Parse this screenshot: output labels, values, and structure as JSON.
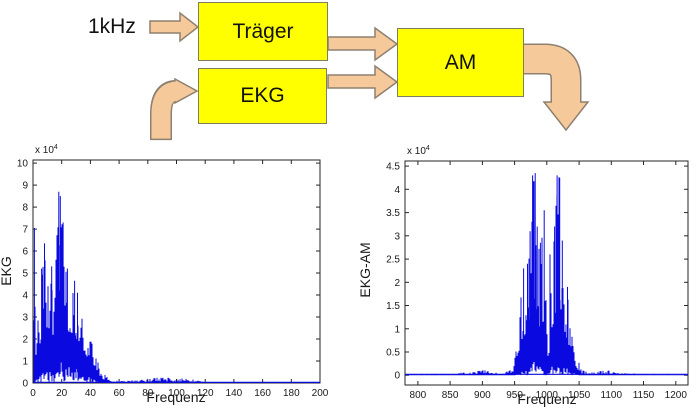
{
  "diagram": {
    "input_label": "1kHz",
    "blocks": {
      "traeger": "Träger",
      "ekg": "EKG",
      "am": "AM"
    },
    "colors": {
      "box_fill": "#ffff00",
      "box_border": "#7f7f5f",
      "arrow_fill": "#f6c99b",
      "arrow_border": "#8d8070"
    }
  },
  "chart_data": [
    {
      "type": "line",
      "title": "",
      "xlabel": "Frequenz",
      "ylabel": "EKG",
      "y_multiplier": {
        "base": "x 10",
        "exp": "4"
      },
      "line_color": "#0a0ae0",
      "xlim": [
        0,
        200
      ],
      "ylim": [
        0,
        10.14
      ],
      "xticks": [
        0,
        20,
        40,
        60,
        80,
        100,
        120,
        140,
        160,
        180,
        200
      ],
      "yticks": [
        0,
        1,
        2,
        3,
        4,
        5,
        6,
        7,
        8,
        9,
        10
      ],
      "grid": false,
      "legend": null,
      "baseline": 0.03,
      "description": "Noisy magnitude spectrum of EKG signal; energy concentrated 0-50 Hz, small noise ridge 60-115 Hz, peak about 8.7e4 near 19 Hz.",
      "envelope_max": [
        [
          0,
          0.5
        ],
        [
          1,
          7.1
        ],
        [
          2,
          3.2
        ],
        [
          4,
          4.2
        ],
        [
          6,
          5.2
        ],
        [
          8,
          6.35
        ],
        [
          10,
          5.3
        ],
        [
          12,
          4.6
        ],
        [
          14,
          4.4
        ],
        [
          16,
          5.6
        ],
        [
          18,
          8.7
        ],
        [
          20,
          8.4
        ],
        [
          21,
          7.3
        ],
        [
          23,
          5.2
        ],
        [
          25,
          4.3
        ],
        [
          27,
          4.7
        ],
        [
          29,
          4.6
        ],
        [
          31,
          4.1
        ],
        [
          33,
          3.6
        ],
        [
          35,
          3.0
        ],
        [
          37,
          2.7
        ],
        [
          40,
          2.3
        ],
        [
          42,
          1.8
        ],
        [
          44,
          1.2
        ],
        [
          46,
          0.8
        ],
        [
          48,
          0.55
        ],
        [
          50,
          0.4
        ],
        [
          53,
          0.2
        ],
        [
          56,
          0.12
        ],
        [
          60,
          0.1
        ],
        [
          65,
          0.1
        ],
        [
          70,
          0.13
        ],
        [
          75,
          0.15
        ],
        [
          80,
          0.2
        ],
        [
          85,
          0.23
        ],
        [
          90,
          0.25
        ],
        [
          95,
          0.24
        ],
        [
          100,
          0.22
        ],
        [
          105,
          0.2
        ],
        [
          110,
          0.18
        ],
        [
          113,
          0.15
        ],
        [
          117,
          0.08
        ],
        [
          122,
          0.05
        ],
        [
          130,
          0.04
        ],
        [
          200,
          0.04
        ]
      ],
      "envelope_min": [
        [
          0,
          0
        ],
        [
          2,
          0.2
        ],
        [
          5,
          0.6
        ],
        [
          8,
          1.0
        ],
        [
          12,
          1.2
        ],
        [
          16,
          1.3
        ],
        [
          20,
          1.6
        ],
        [
          24,
          1.4
        ],
        [
          28,
          1.2
        ],
        [
          32,
          1.0
        ],
        [
          36,
          0.7
        ],
        [
          40,
          0.4
        ],
        [
          44,
          0.15
        ],
        [
          48,
          0.05
        ],
        [
          52,
          0.01
        ],
        [
          60,
          0
        ],
        [
          200,
          0
        ]
      ],
      "peaks": [
        [
          1,
          7.05
        ],
        [
          6,
          5.2
        ],
        [
          8,
          6.35
        ],
        [
          13,
          5.3
        ],
        [
          16,
          5.6
        ],
        [
          18,
          8.7
        ],
        [
          19,
          8.5
        ],
        [
          21,
          7.3
        ],
        [
          24,
          5.2
        ],
        [
          29,
          4.65
        ],
        [
          31,
          4.1
        ]
      ]
    },
    {
      "type": "line",
      "title": "",
      "xlabel": "Frequenz",
      "ylabel": "EKG-AM",
      "y_multiplier": {
        "base": "x 10",
        "exp": "4"
      },
      "line_color": "#0a0ae0",
      "xlim": [
        780,
        1219
      ],
      "ylim": [
        -0.21,
        4.61
      ],
      "xticks": [
        800,
        850,
        900,
        950,
        1000,
        1050,
        1100,
        1150,
        1200
      ],
      "yticks": [
        0,
        0.5,
        1,
        1.5,
        2,
        2.5,
        3,
        3.5,
        4,
        4.5
      ],
      "grid": false,
      "legend": null,
      "baseline": 0.02,
      "description": "Magnitude spectrum of amplitude-modulated EKG centered at 1 kHz carrier; double-sideband lobes 950-1050 Hz with peaks about 4.3e4 at ~980 and ~1018 Hz, notch near 1000 Hz, small noise bumps near 905 and 1095 Hz.",
      "envelope_max": [
        [
          780,
          0.03
        ],
        [
          855,
          0.03
        ],
        [
          865,
          0.05
        ],
        [
          880,
          0.07
        ],
        [
          895,
          0.1
        ],
        [
          905,
          0.11
        ],
        [
          915,
          0.08
        ],
        [
          925,
          0.06
        ],
        [
          935,
          0.07
        ],
        [
          942,
          0.12
        ],
        [
          948,
          0.25
        ],
        [
          952,
          0.5
        ],
        [
          956,
          1.1
        ],
        [
          960,
          1.8
        ],
        [
          963,
          2.3
        ],
        [
          966,
          2.0
        ],
        [
          970,
          2.4
        ],
        [
          974,
          3.1
        ],
        [
          978,
          4.3
        ],
        [
          982,
          4.35
        ],
        [
          985,
          3.2
        ],
        [
          988,
          2.7
        ],
        [
          992,
          2.9
        ],
        [
          996,
          3.55
        ],
        [
          1000,
          0.9
        ],
        [
          1004,
          1.2
        ],
        [
          1008,
          2.2
        ],
        [
          1012,
          3.2
        ],
        [
          1016,
          4.3
        ],
        [
          1020,
          4.25
        ],
        [
          1024,
          2.9
        ],
        [
          1028,
          2.3
        ],
        [
          1032,
          1.9
        ],
        [
          1036,
          1.4
        ],
        [
          1040,
          1.05
        ],
        [
          1044,
          0.6
        ],
        [
          1048,
          0.35
        ],
        [
          1052,
          0.18
        ],
        [
          1056,
          0.1
        ],
        [
          1065,
          0.07
        ],
        [
          1080,
          0.08
        ],
        [
          1090,
          0.11
        ],
        [
          1098,
          0.1
        ],
        [
          1108,
          0.06
        ],
        [
          1120,
          0.05
        ],
        [
          1132,
          0.05
        ],
        [
          1140,
          0.02
        ],
        [
          1219,
          0.02
        ]
      ],
      "envelope_min": [
        [
          780,
          0
        ],
        [
          950,
          0
        ],
        [
          960,
          0.1
        ],
        [
          970,
          0.3
        ],
        [
          980,
          0.5
        ],
        [
          990,
          0.3
        ],
        [
          1000,
          0.05
        ],
        [
          1010,
          0.4
        ],
        [
          1020,
          0.5
        ],
        [
          1030,
          0.3
        ],
        [
          1040,
          0.1
        ],
        [
          1050,
          0
        ],
        [
          1219,
          0
        ]
      ],
      "peaks": [
        [
          964,
          2.3
        ],
        [
          970,
          2.4
        ],
        [
          974,
          3.1
        ],
        [
          978,
          4.3
        ],
        [
          982,
          4.35
        ],
        [
          985,
          3.2
        ],
        [
          990,
          2.85
        ],
        [
          996,
          3.55
        ],
        [
          1005,
          2.6
        ],
        [
          1012,
          3.2
        ],
        [
          1016,
          4.3
        ],
        [
          1020,
          4.25
        ],
        [
          1024,
          2.9
        ],
        [
          1032,
          1.9
        ]
      ]
    }
  ]
}
